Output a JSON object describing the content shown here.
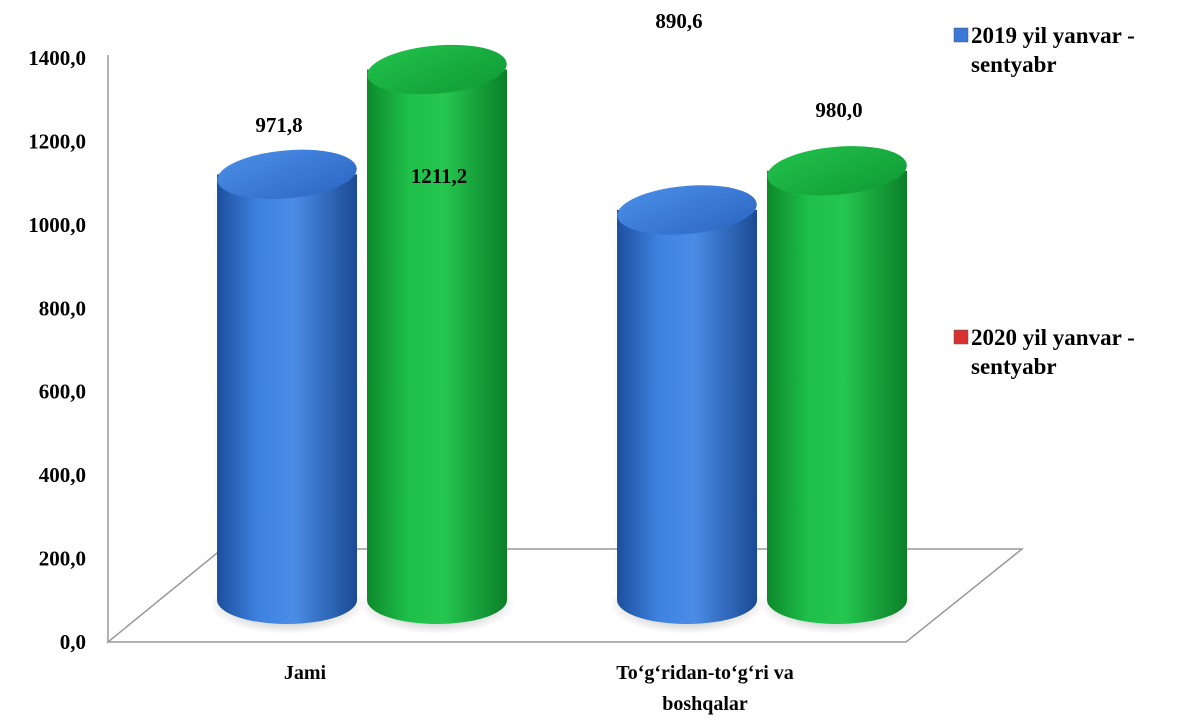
{
  "chart_data": {
    "type": "bar",
    "style": "3d-cylinder",
    "categories": [
      "Jami",
      "To‘g‘ridan-to‘g‘ri va boshqalar"
    ],
    "category_lines": [
      [
        "Jami"
      ],
      [
        "To‘g‘ridan-to‘g‘ri va",
        "boshqalar"
      ]
    ],
    "series": [
      {
        "name": "2019 yil yanvar - sentyabr",
        "name_lines": [
          "2019 yil yanvar -",
          "sentyabr"
        ],
        "values": [
          971.8,
          890.6
        ],
        "value_labels": [
          "971,8",
          "890,6"
        ],
        "color": "#3a78d8",
        "legend_swatch_color": "#3a78d8"
      },
      {
        "name": "2020 yil yanvar - sentyabr",
        "name_lines": [
          "2020 yil yanvar -",
          "sentyabr"
        ],
        "values": [
          1211.2,
          980.0
        ],
        "value_labels": [
          "1211,2",
          "980,0"
        ],
        "color": "#1fb845",
        "legend_swatch_color": "#d93030"
      }
    ],
    "y_ticks": [
      "0,0",
      "200,0",
      "400,0",
      "600,0",
      "800,0",
      "1000,0",
      "1200,0",
      "1400,0"
    ],
    "ylim": [
      0,
      1400
    ],
    "grid": false,
    "legend_position": "right",
    "title": "",
    "xlabel": "",
    "ylabel": ""
  }
}
